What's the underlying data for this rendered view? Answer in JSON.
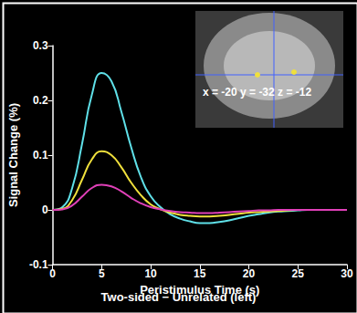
{
  "chart_data": {
    "type": "line",
    "xlabel": "Peristimulus Time (s)",
    "ylabel": "Signal Change (%)",
    "caption": "Two-sided − Unrelated (left)",
    "annotation": "x = -20 y = -32 z = -12",
    "x": [
      0,
      1,
      2,
      3,
      4,
      5,
      6,
      7,
      8,
      9,
      10,
      11,
      12,
      13,
      14,
      15,
      16,
      17,
      18,
      19,
      20,
      21,
      22,
      23,
      24,
      25,
      26,
      27,
      28,
      29,
      30
    ],
    "series": [
      {
        "color": "#5fe0e8",
        "values": [
          0,
          0.005,
          0.04,
          0.12,
          0.21,
          0.25,
          0.235,
          0.18,
          0.115,
          0.06,
          0.025,
          0.005,
          -0.008,
          -0.016,
          -0.021,
          -0.024,
          -0.024,
          -0.022,
          -0.019,
          -0.015,
          -0.011,
          -0.008,
          -0.005,
          -0.003,
          -0.002,
          -0.001,
          0,
          0,
          0,
          0,
          0
        ]
      },
      {
        "color": "#f0e03c",
        "values": [
          0,
          0.002,
          0.018,
          0.055,
          0.092,
          0.107,
          0.1,
          0.078,
          0.05,
          0.027,
          0.01,
          0.001,
          -0.005,
          -0.009,
          -0.011,
          -0.012,
          -0.012,
          -0.011,
          -0.009,
          -0.007,
          -0.005,
          -0.004,
          -0.003,
          -0.002,
          -0.001,
          0,
          0,
          0,
          0,
          0,
          0
        ]
      },
      {
        "color": "#e040b8",
        "values": [
          0,
          0.001,
          0.008,
          0.024,
          0.04,
          0.046,
          0.043,
          0.034,
          0.022,
          0.012,
          0.005,
          0.001,
          -0.002,
          -0.004,
          -0.005,
          -0.006,
          -0.006,
          -0.005,
          -0.004,
          -0.003,
          -0.002,
          -0.001,
          -0.001,
          0,
          0,
          0,
          0,
          0,
          0,
          0,
          0
        ]
      }
    ],
    "xlim": [
      0,
      30
    ],
    "xticks": [
      0,
      5,
      10,
      15,
      20,
      25,
      30
    ],
    "ylim": [
      -0.1,
      0.3
    ],
    "yticks": [
      -0.1,
      0,
      0.1,
      0.2,
      0.3
    ],
    "grid": false
  }
}
